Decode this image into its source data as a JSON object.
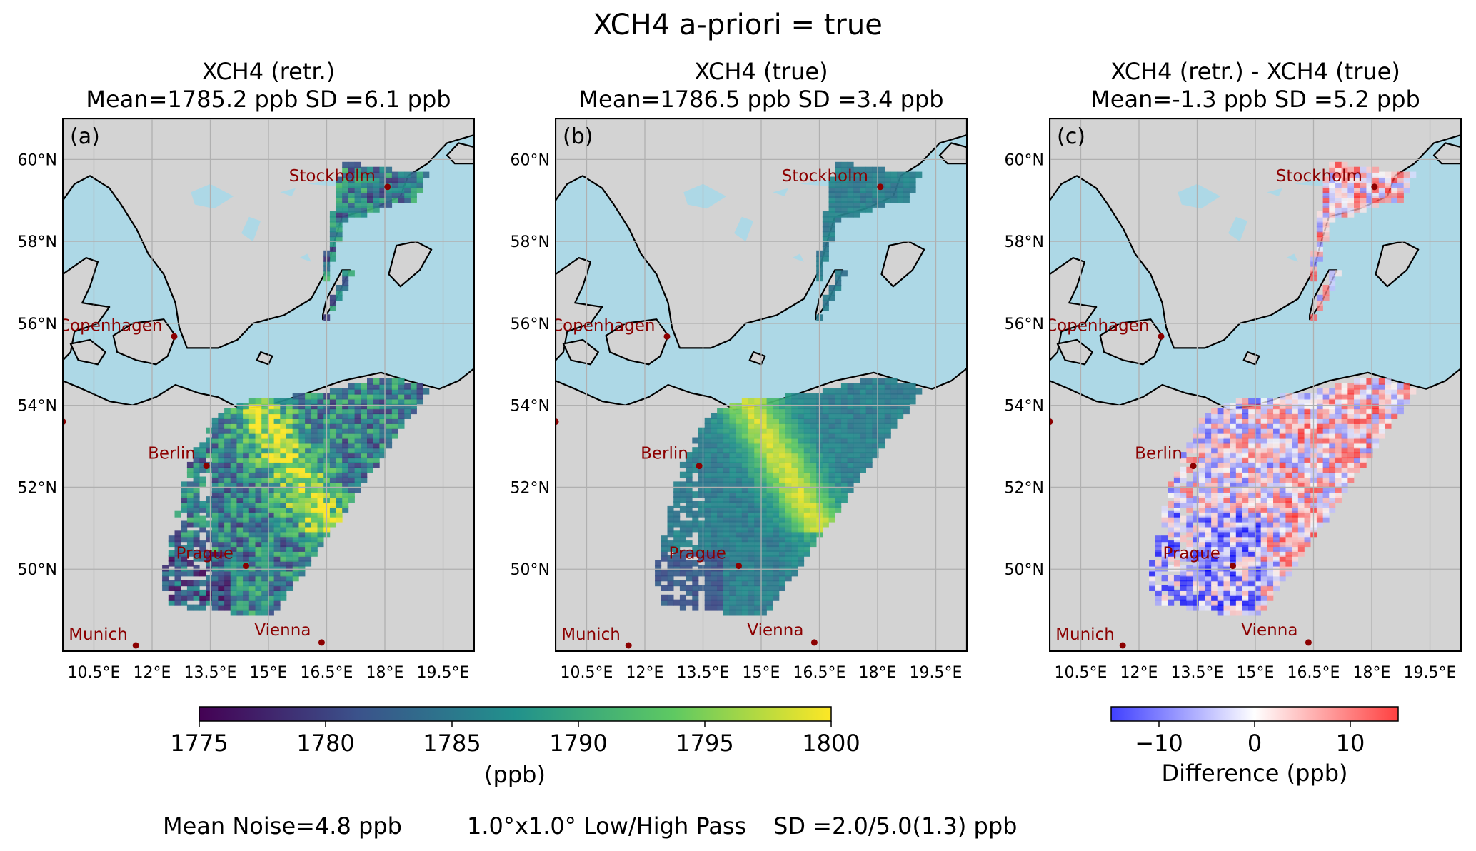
{
  "figure": {
    "suptitle": "XCH4 a-priori = true",
    "footer": {
      "noise": "Mean Noise=4.8 ppb",
      "pass": "1.0°x1.0° Low/High Pass",
      "sd": "SD =2.0/5.0(1.3) ppb"
    }
  },
  "colors": {
    "ocean": "#add8e6",
    "land": "#d3d3d3",
    "grid": "#b0b0b0",
    "coast": "#000000",
    "city": "#8b0000",
    "viridis": [
      "#440154",
      "#3b528b",
      "#21918c",
      "#5ec962",
      "#fde725"
    ],
    "bwr": [
      "#0000ff",
      "#ffffff",
      "#ff0000"
    ]
  },
  "chart_data": [
    {
      "type": "heatmap",
      "label": "(a)",
      "title": "XCH4 (retr.)",
      "subtitle": "Mean=1785.2 ppb SD =6.1 ppb",
      "mean_ppb": 1785.2,
      "sd_ppb": 6.1,
      "colormap": "viridis",
      "clim": [
        1775,
        1800
      ],
      "xlim": [
        9.7,
        20.3
      ],
      "ylim": [
        48.0,
        61.0
      ],
      "xticks": [
        "10.5°E",
        "12°E",
        "13.5°E",
        "15°E",
        "16.5°E",
        "18°E",
        "19.5°E"
      ],
      "yticks": [
        "50°N",
        "52°N",
        "54°N",
        "56°N",
        "58°N",
        "60°N"
      ],
      "grid": true
    },
    {
      "type": "heatmap",
      "label": "(b)",
      "title": "XCH4 (true)",
      "subtitle": "Mean=1786.5 ppb SD =3.4 ppb",
      "mean_ppb": 1786.5,
      "sd_ppb": 3.4,
      "colormap": "viridis",
      "clim": [
        1775,
        1800
      ],
      "xlim": [
        9.7,
        20.3
      ],
      "ylim": [
        48.0,
        61.0
      ],
      "xticks": [
        "10.5°E",
        "12°E",
        "13.5°E",
        "15°E",
        "16.5°E",
        "18°E",
        "19.5°E"
      ],
      "yticks": [
        "50°N",
        "52°N",
        "54°N",
        "56°N",
        "58°N",
        "60°N"
      ],
      "grid": true
    },
    {
      "type": "heatmap",
      "label": "(c)",
      "title": "XCH4 (retr.) - XCH4 (true)",
      "subtitle": "Mean=-1.3 ppb SD =5.2 ppb",
      "mean_ppb": -1.3,
      "sd_ppb": 5.2,
      "colormap": "bwr",
      "clim": [
        -15,
        15
      ],
      "xlim": [
        9.7,
        20.3
      ],
      "ylim": [
        48.0,
        61.0
      ],
      "xticks": [
        "10.5°E",
        "12°E",
        "13.5°E",
        "15°E",
        "16.5°E",
        "18°E",
        "19.5°E"
      ],
      "yticks": [
        "50°N",
        "52°N",
        "54°N",
        "56°N",
        "58°N",
        "60°N"
      ],
      "grid": true
    }
  ],
  "cities": [
    {
      "name": "Stockholm",
      "lon": 18.07,
      "lat": 59.33
    },
    {
      "name": "Copenhagen",
      "lon": 12.57,
      "lat": 55.68
    },
    {
      "name": "Berlin",
      "lon": 13.4,
      "lat": 52.52
    },
    {
      "name": "Prague",
      "lon": 14.42,
      "lat": 50.08
    },
    {
      "name": "Munich",
      "lon": 11.58,
      "lat": 48.14
    },
    {
      "name": "Vienna",
      "lon": 16.37,
      "lat": 48.21
    }
  ],
  "colorbars": [
    {
      "ticks": [
        "1775",
        "1780",
        "1785",
        "1790",
        "1795",
        "1800"
      ],
      "label": "(ppb)",
      "colormap": "viridis"
    },
    {
      "ticks": [
        "−10",
        "0",
        "10"
      ],
      "label": "Difference (ppb)",
      "colormap": "bwr"
    }
  ]
}
